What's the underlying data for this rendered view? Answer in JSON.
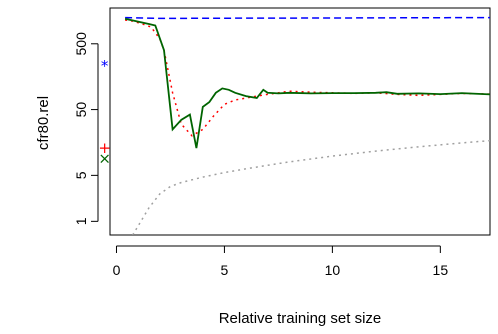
{
  "chart_data": {
    "type": "line",
    "xlabel": "Relative training set size",
    "ylabel": "cfr80.rel",
    "y_scale": "log",
    "xlim": [
      -0.3,
      17.3
    ],
    "ylim": [
      0.62,
      1750
    ],
    "x_ticks": [
      0,
      5,
      10,
      15
    ],
    "x_tick_labels": [
      "0",
      "5",
      "10",
      "15"
    ],
    "y_ticks": [
      1,
      5,
      50,
      500
    ],
    "y_tick_labels": [
      "1",
      "5",
      "50",
      "500"
    ],
    "series": [
      {
        "color": "#0000ff",
        "style": "dashed",
        "x": [
          0.4,
          2.0,
          5.0,
          10.0,
          15.0,
          17.3
        ],
        "y": [
          1250,
          1215,
          1225,
          1235,
          1245,
          1250
        ]
      },
      {
        "color": "#ff0000",
        "style": "dotted",
        "x": [
          0.4,
          0.8,
          1.2,
          1.6,
          2.0,
          2.2,
          2.6,
          3.0,
          3.5,
          4.0,
          4.5,
          5.0,
          5.5,
          6.0,
          6.5,
          7.0,
          8.0,
          9.0,
          10.0,
          11.0,
          12.0,
          13.0,
          14.0,
          15.0,
          16.0,
          17.3
        ],
        "y": [
          1150,
          1100,
          1000,
          900,
          600,
          400,
          90,
          30,
          20,
          25,
          40,
          60,
          70,
          75,
          80,
          85,
          95,
          92,
          90,
          88,
          90,
          85,
          82,
          85,
          88,
          86
        ]
      },
      {
        "color": "#006400",
        "style": "solid",
        "x": [
          0.4,
          1.5,
          1.8,
          2.2,
          2.6,
          3.0,
          3.4,
          3.7,
          4.0,
          4.3,
          4.6,
          4.9,
          5.2,
          5.5,
          6.0,
          6.5,
          6.8,
          7.0,
          7.5,
          8.0,
          9.0,
          10.0,
          11.0,
          12.0,
          12.5,
          13.0,
          14.0,
          15.0,
          16.0,
          17.3
        ],
        "y": [
          1200,
          1000,
          950,
          400,
          25,
          35,
          42,
          13,
          55,
          65,
          90,
          105,
          100,
          90,
          80,
          75,
          100,
          90,
          88,
          90,
          88,
          89,
          89,
          90,
          92,
          87,
          88,
          86,
          89,
          85
        ]
      },
      {
        "color": "#a0a0a0",
        "style": "dotted",
        "x": [
          0.75,
          1.0,
          1.5,
          2.0,
          2.5,
          3.0,
          4.0,
          5.0,
          6.0,
          7.0,
          8.0,
          10.0,
          12.0,
          14.0,
          16.0,
          17.3
        ],
        "y": [
          0.62,
          0.85,
          1.6,
          2.6,
          3.4,
          3.9,
          4.7,
          5.5,
          6.3,
          7.1,
          8.0,
          9.8,
          11.7,
          13.6,
          15.6,
          16.9
        ]
      }
    ],
    "markers": [
      {
        "x": -0.55,
        "y": 230,
        "symbol": "*",
        "color": "#0000ff"
      },
      {
        "x": -0.55,
        "y": 13,
        "symbol": "+",
        "color": "#ff0000"
      },
      {
        "x": -0.55,
        "y": 9,
        "symbol": "x",
        "color": "#006400"
      }
    ]
  }
}
